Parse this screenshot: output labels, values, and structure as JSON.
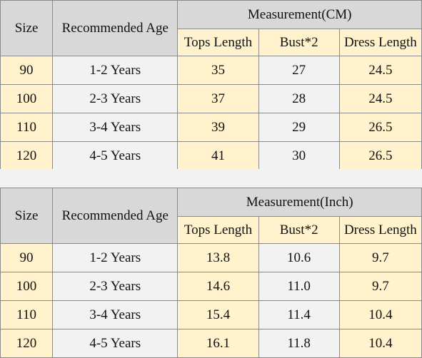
{
  "cm_table": {
    "header": {
      "size": "Size",
      "age": "Recommended Age",
      "measurement": "Measurement(CM)",
      "tops": "Tops Length",
      "bust": "Bust*2",
      "dress": "Dress Length"
    },
    "rows": [
      {
        "size": "90",
        "age": "1-2 Years",
        "tops": "35",
        "bust": "27",
        "dress": "24.5"
      },
      {
        "size": "100",
        "age": "2-3 Years",
        "tops": "37",
        "bust": "28",
        "dress": "24.5"
      },
      {
        "size": "110",
        "age": "3-4 Years",
        "tops": "39",
        "bust": "29",
        "dress": "26.5"
      },
      {
        "size": "120",
        "age": "4-5 Years",
        "tops": "41",
        "bust": "30",
        "dress": "26.5"
      }
    ]
  },
  "inch_table": {
    "header": {
      "size": "Size",
      "age": "Recommended Age",
      "measurement": "Measurement(Inch)",
      "tops": "Tops Length",
      "bust": "Bust*2",
      "dress": "Dress Length"
    },
    "rows": [
      {
        "size": "90",
        "age": "1-2 Years",
        "tops": "13.8",
        "bust": "10.6",
        "dress": "9.7"
      },
      {
        "size": "100",
        "age": "2-3 Years",
        "tops": "14.6",
        "bust": "11.0",
        "dress": "9.7"
      },
      {
        "size": "110",
        "age": "3-4 Years",
        "tops": "15.4",
        "bust": "11.4",
        "dress": "10.4"
      },
      {
        "size": "120",
        "age": "4-5 Years",
        "tops": "16.1",
        "bust": "11.8",
        "dress": "10.4"
      }
    ]
  },
  "colors": {
    "header_bg": "#d8d8d8",
    "cream": "#fff2cc",
    "light": "#f2f2f2",
    "border": "#8a8a8a"
  }
}
